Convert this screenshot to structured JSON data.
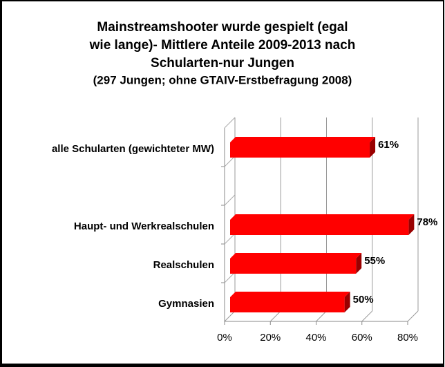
{
  "chart_data": {
    "type": "bar",
    "orientation": "horizontal",
    "title": [
      "Mainstreamshooter wurde gespielt (egal",
      "wie lange)- Mittlere Anteile 2009-2013 nach",
      "Schularten-nur Jungen"
    ],
    "subtitle": "(297 Jungen; ohne GTAIV-Erstbefragung 2008)",
    "categories": [
      "alle Schularten (gewichteter MW)",
      null,
      "Haupt- und Werkrealschulen",
      "Realschulen",
      "Gymnasien"
    ],
    "values": [
      61,
      null,
      78,
      55,
      50
    ],
    "value_labels": [
      "61%",
      null,
      "78%",
      "55%",
      "50%"
    ],
    "color": "#ff0000",
    "xlim": [
      0,
      80
    ],
    "xticks": [
      {
        "value": 0,
        "label": "0%"
      },
      {
        "value": 20,
        "label": "20%"
      },
      {
        "value": 40,
        "label": "40%"
      },
      {
        "value": 60,
        "label": "60%"
      },
      {
        "value": 80,
        "label": "80%"
      }
    ],
    "grid": true
  }
}
